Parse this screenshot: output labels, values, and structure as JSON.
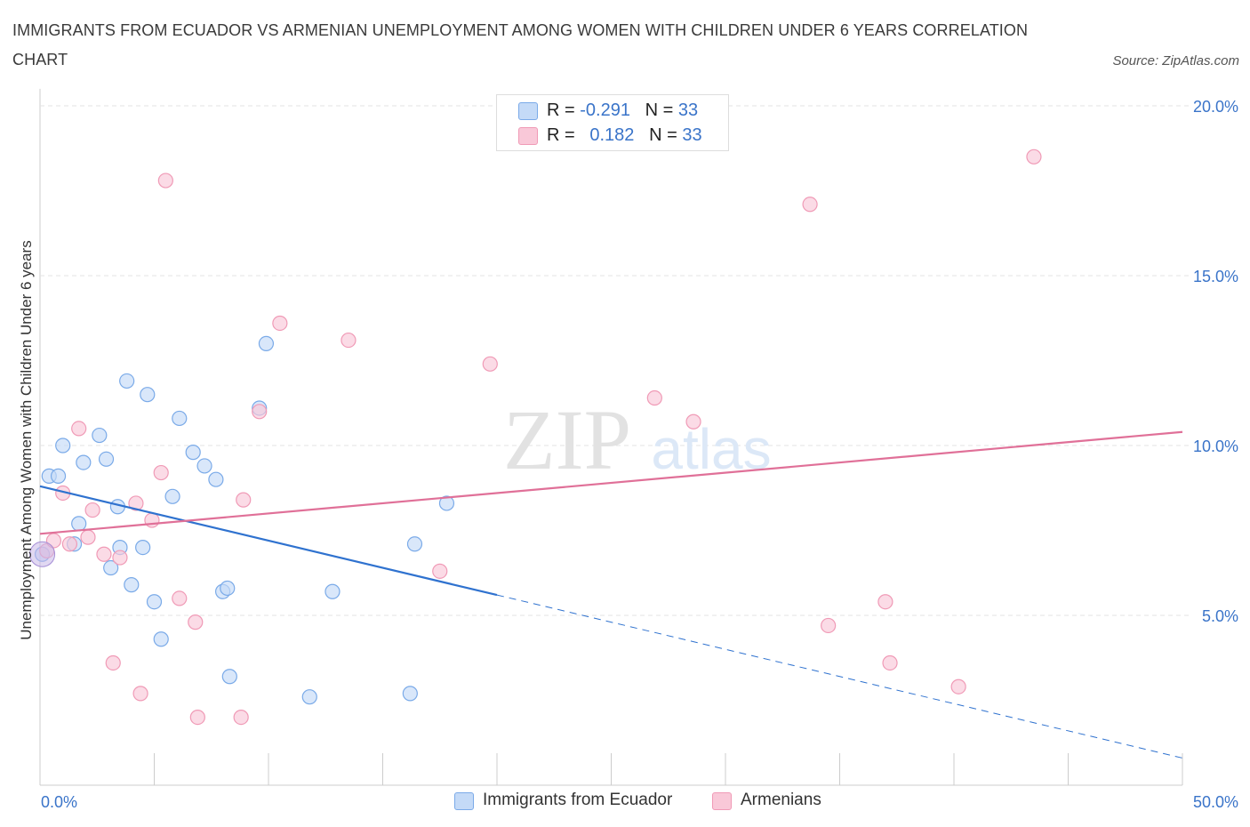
{
  "header": {
    "title": "IMMIGRANTS FROM ECUADOR VS ARMENIAN UNEMPLOYMENT AMONG WOMEN WITH CHILDREN UNDER 6 YEARS CORRELATION CHART",
    "source": "Source: ZipAtlas.com"
  },
  "watermark": {
    "zip": "ZIP",
    "atlas": "atlas"
  },
  "legend": {
    "rows": [
      {
        "r_label": "R =",
        "r_value": "-0.291",
        "n_label": "N =",
        "n_value": "33"
      },
      {
        "r_label": "R =",
        "r_value": "0.182",
        "n_label": "N =",
        "n_value": "33"
      }
    ]
  },
  "chart_data": {
    "type": "scatter",
    "title": "IMMIGRANTS FROM ECUADOR VS ARMENIAN UNEMPLOYMENT AMONG WOMEN WITH CHILDREN UNDER 6 YEARS CORRELATION CHART",
    "ylabel": "Unemployment Among Women with Children Under 6 years",
    "xlabel": "",
    "xlim": [
      0,
      50
    ],
    "ylim": [
      0,
      20.5
    ],
    "x_tick_labels": [
      "0.0%",
      "50.0%"
    ],
    "y_ticks": [
      {
        "value": 5,
        "label": "5.0%"
      },
      {
        "value": 10,
        "label": "10.0%"
      },
      {
        "value": 15,
        "label": "15.0%"
      },
      {
        "value": 20,
        "label": "20.0%"
      }
    ],
    "grid": true,
    "legend_position": "top-center",
    "series": [
      {
        "name": "Immigrants from Ecuador",
        "color": "#7aaae8",
        "fill": "#c4daf7",
        "r": -0.291,
        "n": 33,
        "trend": {
          "x0": 0,
          "y0": 8.8,
          "x1": 20,
          "y1": 5.6,
          "dash_to_x": 50,
          "dash_to_y": 0.8,
          "color": "#2f72cf"
        },
        "points": [
          [
            0.1,
            6.8
          ],
          [
            0.4,
            9.1
          ],
          [
            0.8,
            9.1
          ],
          [
            1.0,
            10.0
          ],
          [
            1.5,
            7.1
          ],
          [
            1.7,
            7.7
          ],
          [
            1.9,
            9.5
          ],
          [
            2.6,
            10.3
          ],
          [
            2.9,
            9.6
          ],
          [
            3.1,
            6.4
          ],
          [
            3.4,
            8.2
          ],
          [
            3.5,
            7.0
          ],
          [
            3.8,
            11.9
          ],
          [
            4.0,
            5.9
          ],
          [
            4.5,
            7.0
          ],
          [
            4.7,
            11.5
          ],
          [
            5.0,
            5.4
          ],
          [
            5.3,
            4.3
          ],
          [
            5.8,
            8.5
          ],
          [
            6.1,
            10.8
          ],
          [
            6.7,
            9.8
          ],
          [
            7.2,
            9.4
          ],
          [
            7.7,
            9.0
          ],
          [
            8.0,
            5.7
          ],
          [
            8.2,
            5.8
          ],
          [
            8.3,
            3.2
          ],
          [
            9.6,
            11.1
          ],
          [
            9.9,
            13.0
          ],
          [
            11.8,
            2.6
          ],
          [
            12.8,
            5.7
          ],
          [
            16.2,
            2.7
          ],
          [
            16.4,
            7.1
          ],
          [
            17.8,
            8.3
          ]
        ]
      },
      {
        "name": "Armenians",
        "color": "#f09ab6",
        "fill": "#f9c8d8",
        "r": 0.182,
        "n": 33,
        "trend": {
          "x0": 0,
          "y0": 7.4,
          "x1": 50,
          "y1": 10.4,
          "color": "#e07098"
        },
        "points": [
          [
            0.3,
            6.9
          ],
          [
            0.6,
            7.2
          ],
          [
            1.0,
            8.6
          ],
          [
            1.3,
            7.1
          ],
          [
            1.7,
            10.5
          ],
          [
            2.1,
            7.3
          ],
          [
            2.3,
            8.1
          ],
          [
            2.8,
            6.8
          ],
          [
            3.2,
            3.6
          ],
          [
            3.5,
            6.7
          ],
          [
            4.2,
            8.3
          ],
          [
            4.4,
            2.7
          ],
          [
            4.9,
            7.8
          ],
          [
            5.3,
            9.2
          ],
          [
            5.5,
            17.8
          ],
          [
            6.1,
            5.5
          ],
          [
            6.8,
            4.8
          ],
          [
            6.9,
            2.0
          ],
          [
            8.8,
            2.0
          ],
          [
            8.9,
            8.4
          ],
          [
            9.6,
            11.0
          ],
          [
            10.5,
            13.6
          ],
          [
            13.5,
            13.1
          ],
          [
            17.5,
            6.3
          ],
          [
            19.7,
            12.4
          ],
          [
            26.9,
            11.4
          ],
          [
            28.6,
            10.7
          ],
          [
            33.7,
            17.1
          ],
          [
            34.5,
            4.7
          ],
          [
            37.0,
            5.4
          ],
          [
            37.2,
            3.6
          ],
          [
            40.2,
            2.9
          ],
          [
            43.5,
            18.5
          ]
        ]
      }
    ]
  }
}
